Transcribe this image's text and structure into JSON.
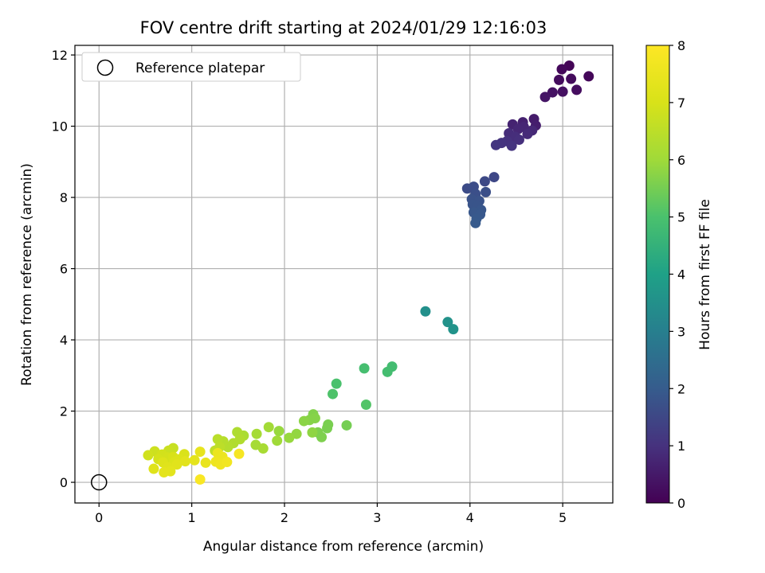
{
  "chart_data": {
    "type": "scatter",
    "title": "FOV centre drift starting at 2024/01/29 12:16:03",
    "xlabel": "Angular distance from reference (arcmin)",
    "ylabel": "Rotation from reference (arcmin)",
    "xlim": [
      -0.26,
      5.54
    ],
    "ylim": [
      -0.58,
      12.27
    ],
    "xticks": [
      "0",
      "1",
      "2",
      "3",
      "4",
      "5"
    ],
    "yticks": [
      "0",
      "2",
      "4",
      "6",
      "8",
      "10",
      "12"
    ],
    "grid": true,
    "legend": {
      "placement": "upper-left",
      "entries": [
        "Reference platepar"
      ]
    },
    "reference_point": {
      "x": 0,
      "y": 0
    },
    "colorbar": {
      "label": "Hours from first FF file",
      "range": [
        0,
        8
      ],
      "ticks": [
        "0",
        "1",
        "2",
        "3",
        "4",
        "5",
        "6",
        "7",
        "8"
      ],
      "colormap": "viridis"
    },
    "points": [
      [
        5.07,
        11.7,
        0.08
      ],
      [
        4.99,
        11.6,
        0.15
      ],
      [
        5.28,
        11.4,
        0.12
      ],
      [
        5.09,
        11.33,
        0.2
      ],
      [
        4.96,
        11.3,
        0.22
      ],
      [
        5.15,
        11.02,
        0.25
      ],
      [
        5.0,
        10.97,
        0.3
      ],
      [
        4.89,
        10.95,
        0.35
      ],
      [
        4.81,
        10.82,
        0.4
      ],
      [
        4.69,
        10.2,
        0.55
      ],
      [
        4.57,
        10.11,
        0.65
      ],
      [
        4.71,
        10.02,
        0.6
      ],
      [
        4.46,
        10.05,
        0.7
      ],
      [
        4.58,
        9.98,
        0.75
      ],
      [
        4.52,
        9.92,
        0.78
      ],
      [
        4.67,
        9.88,
        0.8
      ],
      [
        4.62,
        9.78,
        0.85
      ],
      [
        4.42,
        9.8,
        0.9
      ],
      [
        4.49,
        9.7,
        0.92
      ],
      [
        4.53,
        9.62,
        0.95
      ],
      [
        4.4,
        9.58,
        1.0
      ],
      [
        4.34,
        9.53,
        1.05
      ],
      [
        4.45,
        9.45,
        1.05
      ],
      [
        4.28,
        9.47,
        1.1
      ],
      [
        4.26,
        8.57,
        1.5
      ],
      [
        4.16,
        8.45,
        1.55
      ],
      [
        3.97,
        8.25,
        1.6
      ],
      [
        4.04,
        8.3,
        1.65
      ],
      [
        4.17,
        8.15,
        1.68
      ],
      [
        4.06,
        8.1,
        1.7
      ],
      [
        4.02,
        7.95,
        1.75
      ],
      [
        4.1,
        7.9,
        1.78
      ],
      [
        4.03,
        7.8,
        1.8
      ],
      [
        4.08,
        7.75,
        1.82
      ],
      [
        4.12,
        7.65,
        1.85
      ],
      [
        4.04,
        7.58,
        1.87
      ],
      [
        4.11,
        7.52,
        1.9
      ],
      [
        4.07,
        7.4,
        1.92
      ],
      [
        4.06,
        7.28,
        1.95
      ],
      [
        3.52,
        4.8,
        3.5
      ],
      [
        3.76,
        4.5,
        3.55
      ],
      [
        3.82,
        4.3,
        3.6
      ],
      [
        2.86,
        3.2,
        4.9
      ],
      [
        3.16,
        3.25,
        4.85
      ],
      [
        3.11,
        3.1,
        4.88
      ],
      [
        2.56,
        2.77,
        5.0
      ],
      [
        2.52,
        2.48,
        5.05
      ],
      [
        2.88,
        2.18,
        5.1
      ],
      [
        2.67,
        1.6,
        5.5
      ],
      [
        2.47,
        1.62,
        5.55
      ],
      [
        2.46,
        1.52,
        5.55
      ],
      [
        2.36,
        1.4,
        5.6
      ],
      [
        2.4,
        1.27,
        5.6
      ],
      [
        2.31,
        1.91,
        5.65
      ],
      [
        2.33,
        1.8,
        5.7
      ],
      [
        2.27,
        1.75,
        5.7
      ],
      [
        2.21,
        1.72,
        5.75
      ],
      [
        2.3,
        1.4,
        5.8
      ],
      [
        2.13,
        1.36,
        5.85
      ],
      [
        2.05,
        1.25,
        5.9
      ],
      [
        1.94,
        1.44,
        5.9
      ],
      [
        1.92,
        1.17,
        6.0
      ],
      [
        1.83,
        1.55,
        6.05
      ],
      [
        1.7,
        1.36,
        6.1
      ],
      [
        1.69,
        1.05,
        6.1
      ],
      [
        1.77,
        0.95,
        6.15
      ],
      [
        1.56,
        1.31,
        6.2
      ],
      [
        1.49,
        1.41,
        6.25
      ],
      [
        1.52,
        1.21,
        6.3
      ],
      [
        1.45,
        1.1,
        6.3
      ],
      [
        1.39,
        0.99,
        6.35
      ],
      [
        1.34,
        1.15,
        6.4
      ],
      [
        1.28,
        1.21,
        6.45
      ],
      [
        1.3,
        0.99,
        6.5
      ],
      [
        1.25,
        0.89,
        6.55
      ],
      [
        0.8,
        0.96,
        6.7
      ],
      [
        0.75,
        0.89,
        6.75
      ],
      [
        0.6,
        0.87,
        6.8
      ],
      [
        0.53,
        0.76,
        6.85
      ],
      [
        0.68,
        0.78,
        6.9
      ],
      [
        0.74,
        0.7,
        6.92
      ],
      [
        0.64,
        0.65,
        6.95
      ],
      [
        0.8,
        0.71,
        7.0
      ],
      [
        0.92,
        0.79,
        7.05
      ],
      [
        0.87,
        0.65,
        7.1
      ],
      [
        0.81,
        0.57,
        7.12
      ],
      [
        0.69,
        0.56,
        7.15
      ],
      [
        0.59,
        0.38,
        7.2
      ],
      [
        0.74,
        0.42,
        7.22
      ],
      [
        0.84,
        0.5,
        7.25
      ],
      [
        0.93,
        0.59,
        7.28
      ],
      [
        0.77,
        0.31,
        7.3
      ],
      [
        0.7,
        0.28,
        7.33
      ],
      [
        1.03,
        0.62,
        7.35
      ],
      [
        1.09,
        0.86,
        7.4
      ],
      [
        1.15,
        0.55,
        7.45
      ],
      [
        1.28,
        0.82,
        7.5
      ],
      [
        1.33,
        0.72,
        7.55
      ],
      [
        1.26,
        0.58,
        7.6
      ],
      [
        1.31,
        0.5,
        7.65
      ],
      [
        1.38,
        0.57,
        7.7
      ],
      [
        1.51,
        0.8,
        7.8
      ],
      [
        1.09,
        0.08,
        7.9
      ]
    ]
  }
}
